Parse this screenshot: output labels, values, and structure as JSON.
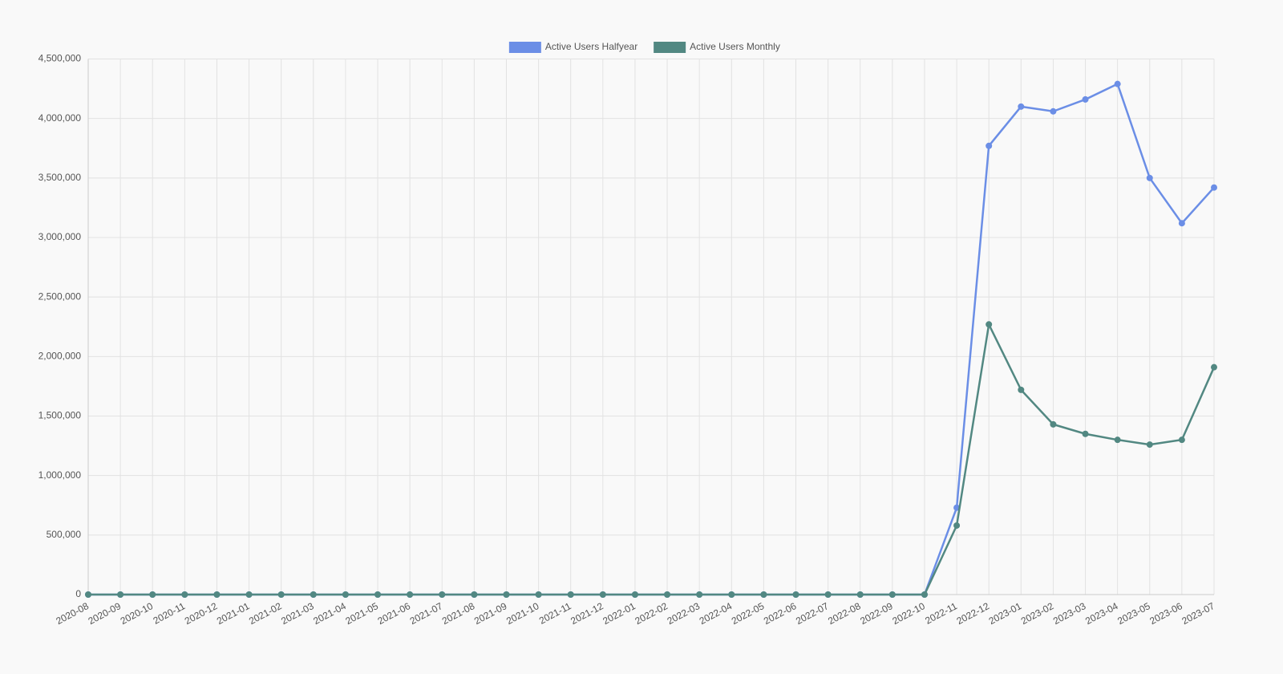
{
  "chart_data": {
    "type": "line",
    "categories": [
      "2020-08",
      "2020-09",
      "2020-10",
      "2020-11",
      "2020-12",
      "2021-01",
      "2021-02",
      "2021-03",
      "2021-04",
      "2021-05",
      "2021-06",
      "2021-07",
      "2021-08",
      "2021-09",
      "2021-10",
      "2021-11",
      "2021-12",
      "2022-01",
      "2022-02",
      "2022-03",
      "2022-04",
      "2022-05",
      "2022-06",
      "2022-07",
      "2022-08",
      "2022-09",
      "2022-10",
      "2022-11",
      "2022-12",
      "2023-01",
      "2023-02",
      "2023-03",
      "2023-04",
      "2023-05",
      "2023-06",
      "2023-07"
    ],
    "series": [
      {
        "name": "Active Users Halfyear",
        "color": "#6b8ee6",
        "values": [
          0,
          0,
          0,
          0,
          0,
          0,
          0,
          0,
          0,
          0,
          0,
          0,
          0,
          0,
          0,
          0,
          0,
          0,
          0,
          0,
          0,
          0,
          0,
          0,
          0,
          0,
          0,
          730000,
          3770000,
          4100000,
          4060000,
          4160000,
          4290000,
          3500000,
          3120000,
          3420000
        ]
      },
      {
        "name": "Active Users Monthly",
        "color": "#528882",
        "values": [
          0,
          0,
          0,
          0,
          0,
          0,
          0,
          0,
          0,
          0,
          0,
          0,
          0,
          0,
          0,
          0,
          0,
          0,
          0,
          0,
          0,
          0,
          0,
          0,
          0,
          0,
          0,
          580000,
          2270000,
          1720000,
          1430000,
          1350000,
          1300000,
          1260000,
          1300000,
          1910000
        ]
      }
    ],
    "ylim": [
      0,
      4500000
    ],
    "yticks": [
      0,
      {
        "value": 500000,
        "label": "500,000"
      },
      {
        "value": 1000000,
        "label": "1,000,000"
      },
      {
        "value": 1500000,
        "label": "1,500,000"
      },
      {
        "value": 2000000,
        "label": "2,000,000"
      },
      {
        "value": 2500000,
        "label": "2,500,000"
      },
      {
        "value": 3000000,
        "label": "3,000,000"
      },
      {
        "value": 3500000,
        "label": "3,500,000"
      },
      {
        "value": 4000000,
        "label": "4,000,000"
      },
      {
        "value": 4500000,
        "label": "4,500,000"
      }
    ],
    "grid": true,
    "legend": "top"
  }
}
